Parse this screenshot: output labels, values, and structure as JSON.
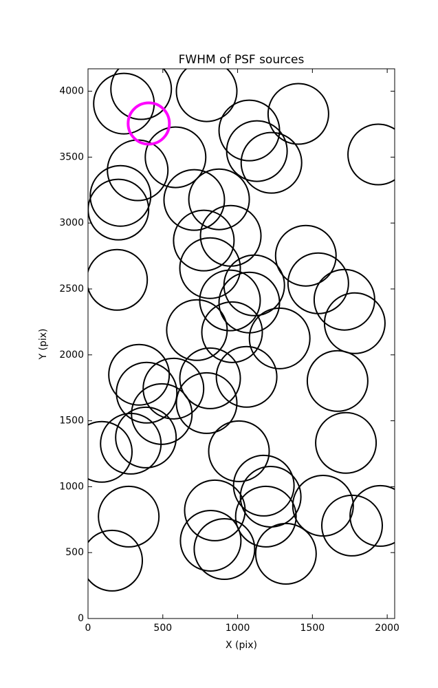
{
  "chart_data": {
    "type": "scatter",
    "title": "FWHM of PSF sources",
    "x_label": "X (pix)",
    "y_label": "Y (pix)",
    "xlim": [
      0,
      2050
    ],
    "ylim": [
      0,
      4170
    ],
    "xticks": [
      0,
      500,
      1000,
      1500,
      2000
    ],
    "yticks": [
      0,
      500,
      1000,
      1500,
      2000,
      2500,
      3000,
      3500,
      4000
    ],
    "series": [
      {
        "color": "#000000",
        "x": [
          240,
          355,
          793,
          1078,
          1406,
          1129,
          1226,
          1940,
          585,
          332,
          217,
          203,
          710,
          876,
          774,
          954,
          816,
          1456,
          1539,
          1714,
          1783,
          194,
          1111,
          949,
          1078,
          728,
          963,
          1281,
          341,
          392,
          571,
          816,
          1060,
          1668,
          493,
          793,
          387,
          286,
          92,
          1724,
          1009,
          1175,
          1221,
          272,
          848,
          1189,
          1571,
          1954,
          1765,
          820,
          912,
          1323,
          161
        ],
        "values": [
          3906,
          4016,
          4000,
          3702,
          3828,
          3546,
          3457,
          3520,
          3499,
          3400,
          3206,
          3102,
          3175,
          3180,
          2867,
          2903,
          2658,
          2752,
          2543,
          2418,
          2240,
          2569,
          2527,
          2413,
          2397,
          2188,
          2172,
          2125,
          1849,
          1713,
          1744,
          1822,
          1833,
          1802,
          1551,
          1634,
          1373,
          1326,
          1264,
          1332,
          1269,
          1008,
          924,
          773,
          820,
          773,
          856,
          778,
          705,
          590,
          527,
          491,
          439
        ]
      },
      {
        "color": "#ff00ff",
        "x": [
          406
        ],
        "values": [
          3755
        ]
      }
    ]
  }
}
